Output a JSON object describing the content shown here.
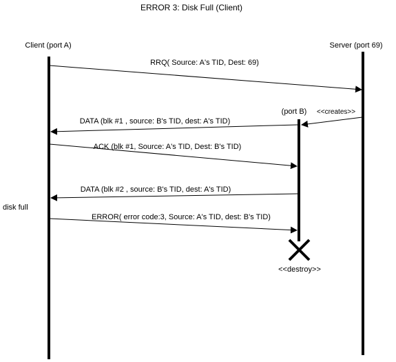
{
  "title": "ERROR 3: Disk Full (Client)",
  "participants": {
    "client": "Client (port A)",
    "server": "Server (port 69)",
    "port_b": "(port B)"
  },
  "messages": {
    "rrq": "RRQ( Source: A's TID, Dest: 69)",
    "creates": "<<creates>>",
    "data1": "DATA (blk #1 , source: B's TID, dest: A's TID)",
    "ack1": "ACK (blk #1, Source: A's TID, Dest: B's TID)",
    "data2": "DATA (blk #2 , source: B's TID, dest: A's TID)",
    "error": "ERROR( error code:3, Source: A's TID, dest: B's TID)"
  },
  "notes": {
    "disk_full": "disk full",
    "destroy": "<<destroy>>"
  },
  "colors": {
    "line": "#000000",
    "background": "#ffffff"
  }
}
